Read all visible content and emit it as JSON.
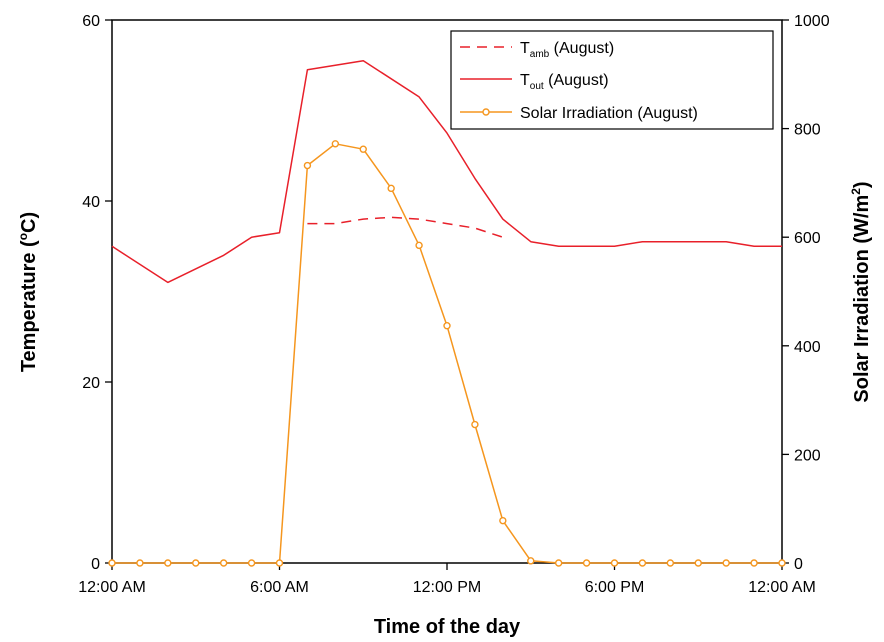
{
  "chart_data": {
    "type": "line",
    "xlabel": "Time of the day",
    "ylabel_left": {
      "pre": "Temperature (",
      "sup": "o",
      "post": "C)"
    },
    "ylabel_right": {
      "pre": "Solar Irradiation (W/m",
      "sup": "2",
      "post": ")"
    },
    "xlim": [
      0,
      24
    ],
    "ylim_left": [
      0,
      60
    ],
    "ylim_right": [
      0,
      1000
    ],
    "x_ticks": [
      {
        "value": 0,
        "label": "12:00 AM"
      },
      {
        "value": 6,
        "label": "6:00 AM"
      },
      {
        "value": 12,
        "label": "12:00 PM"
      },
      {
        "value": 18,
        "label": "6:00 PM"
      },
      {
        "value": 24,
        "label": "12:00 AM"
      }
    ],
    "y_left_ticks": [
      0,
      20,
      40,
      60
    ],
    "y_right_ticks": [
      0,
      200,
      400,
      600,
      800,
      1000
    ],
    "legend_position": "top-right",
    "series": [
      {
        "name": "Tamb (August)",
        "name_base": "T",
        "name_sub": "amb",
        "name_rest": " (August)",
        "axis": "left",
        "style": "dashed",
        "color": "#e8202a",
        "x": [
          7,
          8,
          9,
          10,
          11,
          12,
          13,
          14
        ],
        "y": [
          37.5,
          37.5,
          38.0,
          38.2,
          38.0,
          37.5,
          37.0,
          36.0
        ]
      },
      {
        "name": "Tout (August)",
        "name_base": "T",
        "name_sub": "out",
        "name_rest": " (August)",
        "axis": "left",
        "style": "solid",
        "color": "#e8202a",
        "x": [
          0,
          2,
          4,
          5,
          6,
          7,
          9,
          11,
          12,
          13,
          14,
          15,
          16,
          17,
          18,
          19,
          20,
          21,
          22,
          23,
          24
        ],
        "y": [
          35.0,
          31.0,
          34.0,
          36.0,
          36.5,
          54.5,
          55.5,
          51.5,
          47.5,
          42.5,
          38.0,
          35.5,
          35.0,
          35.0,
          35.0,
          35.5,
          35.5,
          35.5,
          35.5,
          35.0,
          35.0
        ]
      },
      {
        "name": "Solar Irradiation (August)",
        "name_base": "Solar Irradiation (August)",
        "name_sub": "",
        "name_rest": "",
        "axis": "right",
        "style": "solid-markers",
        "color": "#f5961e",
        "x": [
          0,
          1,
          2,
          3,
          4,
          5,
          6,
          7,
          8,
          9,
          10,
          11,
          12,
          13,
          14,
          15,
          16,
          17,
          18,
          19,
          20,
          21,
          22,
          23,
          24
        ],
        "y": [
          0,
          0,
          0,
          0,
          0,
          0,
          0,
          732,
          772,
          762,
          690,
          585,
          437,
          255,
          78,
          4,
          0,
          0,
          0,
          0,
          0,
          0,
          0,
          0,
          0
        ]
      }
    ]
  }
}
